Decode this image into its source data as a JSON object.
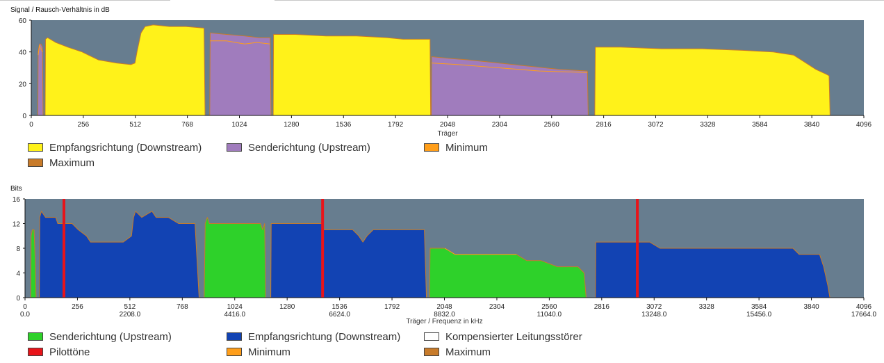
{
  "colors": {
    "plot_bg": "#677d8f",
    "downstream_snr": "#fff21a",
    "upstream_snr": "#a07cbd",
    "upstream_bits": "#2ed12a",
    "downstream_bits": "#1243b3",
    "pilot": "#e8141a",
    "minimum": "#ff9e1a",
    "maximum": "#c87b2a",
    "compensated": "#ffffff"
  },
  "chart_data": [
    {
      "type": "area",
      "title": "Signal / Rausch-Verhältnis in dB",
      "xlabel": "Träger",
      "ylabel": "",
      "xlim": [
        0,
        4096
      ],
      "ylim": [
        0,
        60
      ],
      "yticks": [
        0,
        20,
        40,
        60
      ],
      "xticks": [
        0,
        256,
        512,
        768,
        1024,
        1280,
        1536,
        1792,
        2048,
        2304,
        2560,
        2816,
        3072,
        3328,
        3584,
        3840,
        4096
      ],
      "legend": [
        {
          "label": "Empfangsrichtung (Downstream)",
          "color_key": "downstream_snr"
        },
        {
          "label": "Senderichtung (Upstream)",
          "color_key": "upstream_snr"
        },
        {
          "label": "Minimum",
          "color_key": "minimum"
        },
        {
          "label": "Maximum",
          "color_key": "maximum"
        }
      ],
      "series": [
        {
          "name": "Senderichtung (Upstream)",
          "color_key": "upstream_snr",
          "points": [
            [
              32,
              0
            ],
            [
              34,
              40
            ],
            [
              40,
              45
            ],
            [
              48,
              45
            ],
            [
              55,
              43
            ],
            [
              58,
              0
            ]
          ]
        },
        {
          "name": "Empfangsrichtung (Downstream)",
          "color_key": "downstream_snr",
          "points": [
            [
              68,
              0
            ],
            [
              70,
              48
            ],
            [
              80,
              49
            ],
            [
              120,
              46
            ],
            [
              180,
              43
            ],
            [
              250,
              40
            ],
            [
              330,
              35
            ],
            [
              420,
              33
            ],
            [
              490,
              32
            ],
            [
              510,
              33
            ],
            [
              520,
              40
            ],
            [
              540,
              52
            ],
            [
              560,
              56
            ],
            [
              600,
              57
            ],
            [
              680,
              56
            ],
            [
              760,
              56
            ],
            [
              850,
              55
            ],
            [
              855,
              0
            ]
          ]
        },
        {
          "name": "Senderichtung (Upstream)",
          "color_key": "upstream_snr",
          "points": [
            [
              878,
              0
            ],
            [
              880,
              52
            ],
            [
              960,
              51
            ],
            [
              1050,
              50
            ],
            [
              1120,
              49
            ],
            [
              1175,
              49
            ],
            [
              1180,
              0
            ]
          ]
        },
        {
          "name": "Empfangsrichtung (Downstream)",
          "color_key": "downstream_snr",
          "points": [
            [
              1190,
              0
            ],
            [
              1192,
              51
            ],
            [
              1300,
              51
            ],
            [
              1450,
              50
            ],
            [
              1600,
              50
            ],
            [
              1750,
              49
            ],
            [
              1830,
              48
            ],
            [
              1962,
              48
            ],
            [
              1965,
              0
            ]
          ]
        },
        {
          "name": "Senderichtung (Upstream)",
          "color_key": "upstream_snr",
          "points": [
            [
              1968,
              0
            ],
            [
              1970,
              37
            ],
            [
              2050,
              36
            ],
            [
              2150,
              35
            ],
            [
              2300,
              33
            ],
            [
              2450,
              31
            ],
            [
              2600,
              29
            ],
            [
              2736,
              28
            ],
            [
              2740,
              0
            ]
          ]
        },
        {
          "name": "Empfangsrichtung (Downstream)",
          "color_key": "downstream_snr",
          "points": [
            [
              2772,
              0
            ],
            [
              2775,
              43
            ],
            [
              2900,
              43
            ],
            [
              3100,
              42
            ],
            [
              3300,
              42
            ],
            [
              3500,
              41
            ],
            [
              3650,
              40
            ],
            [
              3750,
              38
            ],
            [
              3800,
              34
            ],
            [
              3860,
              29
            ],
            [
              3910,
              26
            ],
            [
              3925,
              25
            ],
            [
              3930,
              0
            ]
          ]
        }
      ],
      "minimum": [
        {
          "points": [
            [
              34,
              38
            ],
            [
              40,
              44
            ],
            [
              55,
              40
            ]
          ]
        },
        {
          "points": [
            [
              880,
              47
            ],
            [
              960,
              47
            ],
            [
              1050,
              45
            ],
            [
              1110,
              46
            ],
            [
              1175,
              45
            ]
          ]
        },
        {
          "points": [
            [
              1970,
              33
            ],
            [
              2100,
              32
            ],
            [
              2300,
              30
            ],
            [
              2500,
              28
            ],
            [
              2736,
              27
            ]
          ]
        }
      ]
    },
    {
      "type": "area",
      "title": "Bits",
      "xlabel": "Träger / Frequenz in kHz",
      "ylabel": "",
      "xlim": [
        0,
        4096
      ],
      "ylim": [
        0,
        16
      ],
      "yticks": [
        0,
        4,
        8,
        12,
        16
      ],
      "xticks": [
        0,
        256,
        512,
        768,
        1024,
        1280,
        1536,
        1792,
        2048,
        2304,
        2560,
        2816,
        3072,
        3328,
        3584,
        3840,
        4096
      ],
      "freq_labels": [
        {
          "x": 0,
          "label": "0.0"
        },
        {
          "x": 512,
          "label": "2208.0"
        },
        {
          "x": 1024,
          "label": "4416.0"
        },
        {
          "x": 1536,
          "label": "6624.0"
        },
        {
          "x": 2048,
          "label": "8832.0"
        },
        {
          "x": 2560,
          "label": "11040.0"
        },
        {
          "x": 3072,
          "label": "13248.0"
        },
        {
          "x": 3584,
          "label": "15456.0"
        },
        {
          "x": 4096,
          "label": "17664.0"
        }
      ],
      "legend": [
        {
          "label": "Senderichtung (Upstream)",
          "color_key": "upstream_bits"
        },
        {
          "label": "Empfangsrichtung (Downstream)",
          "color_key": "downstream_bits"
        },
        {
          "label": "Kompensierter Leitungsstörer",
          "color_key": "compensated"
        },
        {
          "label": "Pilottöne",
          "color_key": "pilot"
        },
        {
          "label": "Minimum",
          "color_key": "minimum"
        },
        {
          "label": "Maximum",
          "color_key": "maximum"
        }
      ],
      "pilot_tones": [
        190,
        1453,
        2990
      ],
      "series": [
        {
          "name": "Senderichtung (Upstream)",
          "color_key": "upstream_bits",
          "points": [
            [
              28,
              0
            ],
            [
              30,
              10
            ],
            [
              36,
              11
            ],
            [
              44,
              11
            ],
            [
              50,
              6
            ],
            [
              54,
              0
            ]
          ]
        },
        {
          "name": "Empfangsrichtung (Downstream)",
          "color_key": "downstream_bits",
          "points": [
            [
              70,
              0
            ],
            [
              72,
              13
            ],
            [
              80,
              14
            ],
            [
              100,
              13
            ],
            [
              150,
              13
            ],
            [
              160,
              12
            ],
            [
              230,
              12
            ],
            [
              260,
              11
            ],
            [
              300,
              10
            ],
            [
              320,
              9
            ],
            [
              480,
              9
            ],
            [
              520,
              10
            ],
            [
              530,
              13
            ],
            [
              540,
              14
            ],
            [
              570,
              13
            ],
            [
              620,
              14
            ],
            [
              640,
              13
            ],
            [
              700,
              13
            ],
            [
              750,
              12
            ],
            [
              830,
              12
            ],
            [
              850,
              0
            ]
          ]
        },
        {
          "name": "Senderichtung (Upstream)",
          "color_key": "upstream_bits",
          "points": [
            [
              875,
              0
            ],
            [
              880,
              12
            ],
            [
              890,
              13
            ],
            [
              900,
              12
            ],
            [
              1150,
              12
            ],
            [
              1160,
              11
            ],
            [
              1170,
              12
            ],
            [
              1175,
              0
            ]
          ]
        },
        {
          "name": "Empfangsrichtung (Downstream)",
          "color_key": "downstream_bits",
          "points": [
            [
              1200,
              0
            ],
            [
              1202,
              12
            ],
            [
              1400,
              12
            ],
            [
              1450,
              12
            ],
            [
              1460,
              11
            ],
            [
              1600,
              11
            ],
            [
              1630,
              10
            ],
            [
              1650,
              9
            ],
            [
              1670,
              10
            ],
            [
              1700,
              11
            ],
            [
              1800,
              11
            ],
            [
              1950,
              11
            ],
            [
              1960,
              0
            ]
          ]
        },
        {
          "name": "Senderichtung (Upstream)",
          "color_key": "upstream_bits",
          "points": [
            [
              1975,
              0
            ],
            [
              1978,
              8
            ],
            [
              2050,
              8
            ],
            [
              2100,
              7
            ],
            [
              2400,
              7
            ],
            [
              2450,
              6
            ],
            [
              2520,
              6
            ],
            [
              2600,
              5
            ],
            [
              2700,
              5
            ],
            [
              2730,
              4
            ],
            [
              2740,
              0
            ]
          ]
        },
        {
          "name": "Empfangsrichtung (Downstream)",
          "color_key": "downstream_bits",
          "points": [
            [
              2785,
              0
            ],
            [
              2787,
              9
            ],
            [
              3050,
              9
            ],
            [
              3100,
              8
            ],
            [
              3500,
              8
            ],
            [
              3750,
              8
            ],
            [
              3780,
              7
            ],
            [
              3880,
              7
            ],
            [
              3900,
              5
            ],
            [
              3920,
              2
            ],
            [
              3930,
              0
            ]
          ]
        }
      ],
      "minimum": [
        {
          "points": [
            [
              2050,
              8
            ],
            [
              2100,
              7
            ],
            [
              2400,
              7
            ]
          ]
        }
      ]
    }
  ]
}
